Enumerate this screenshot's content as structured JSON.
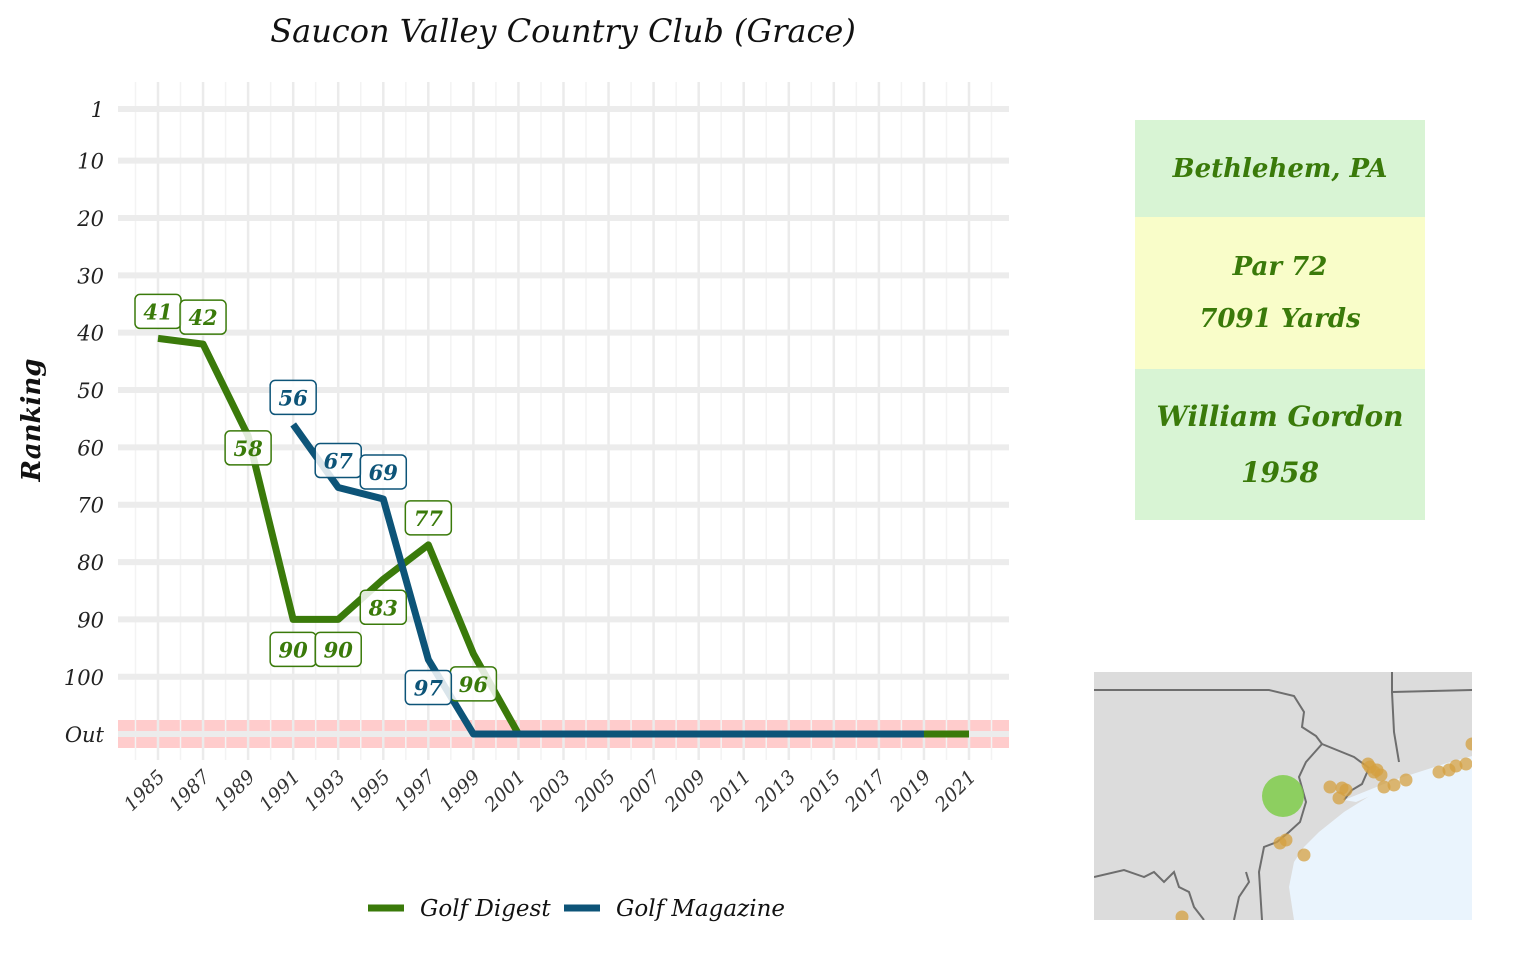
{
  "chart_data": {
    "type": "line",
    "title": "Saucon Valley Country Club (Grace)",
    "ylabel": "Ranking",
    "xlabel": "",
    "x_ticks": [
      1985,
      1987,
      1989,
      1991,
      1993,
      1995,
      1997,
      1999,
      2001,
      2003,
      2005,
      2007,
      2009,
      2011,
      2013,
      2015,
      2017,
      2019,
      2021
    ],
    "y_ticks": [
      "1",
      "10",
      "20",
      "30",
      "40",
      "50",
      "60",
      "70",
      "80",
      "90",
      "100",
      "Out"
    ],
    "out_label": "Out",
    "y_range": [
      1,
      110
    ],
    "grid": true,
    "legend_position": "bottom",
    "series": [
      {
        "name": "Golf Digest",
        "color": "#3a7a0a",
        "points": [
          {
            "year": 1985,
            "rank": 41
          },
          {
            "year": 1987,
            "rank": 42
          },
          {
            "year": 1989,
            "rank": 58
          },
          {
            "year": 1991,
            "rank": 90
          },
          {
            "year": 1993,
            "rank": 90
          },
          {
            "year": 1995,
            "rank": 83
          },
          {
            "year": 1997,
            "rank": 77
          },
          {
            "year": 1999,
            "rank": 96
          },
          {
            "year": 2001,
            "rank": "Out"
          },
          {
            "year": 2021,
            "rank": "Out"
          }
        ],
        "labels": [
          {
            "year": 1985,
            "text": "41"
          },
          {
            "year": 1987,
            "text": "42"
          },
          {
            "year": 1989,
            "text": "58"
          },
          {
            "year": 1991,
            "text": "90"
          },
          {
            "year": 1993,
            "text": "90"
          },
          {
            "year": 1995,
            "text": "83"
          },
          {
            "year": 1997,
            "text": "77"
          },
          {
            "year": 1999,
            "text": "96"
          }
        ]
      },
      {
        "name": "Golf Magazine",
        "color": "#0d5478",
        "points": [
          {
            "year": 1991,
            "rank": 56
          },
          {
            "year": 1993,
            "rank": 67
          },
          {
            "year": 1995,
            "rank": 69
          },
          {
            "year": 1997,
            "rank": 97
          },
          {
            "year": 1999,
            "rank": "Out"
          },
          {
            "year": 2019,
            "rank": "Out"
          }
        ],
        "labels": [
          {
            "year": 1991,
            "text": "56"
          },
          {
            "year": 1993,
            "text": "67"
          },
          {
            "year": 1995,
            "text": "69"
          },
          {
            "year": 1997,
            "text": "97"
          }
        ]
      }
    ],
    "out_band_color": "#ffcccc"
  },
  "info": {
    "location": "Bethlehem, PA",
    "par": "Par 72",
    "yards": "7091 Yards",
    "architect": "William Gordon",
    "year": "1958"
  },
  "map": {
    "land_color": "#dcdcdc",
    "water_color": "#eaf4fd",
    "border_color": "#6e6e6e",
    "highlight_color": "#7fcc4a",
    "other_course_color": "#d4a040"
  }
}
